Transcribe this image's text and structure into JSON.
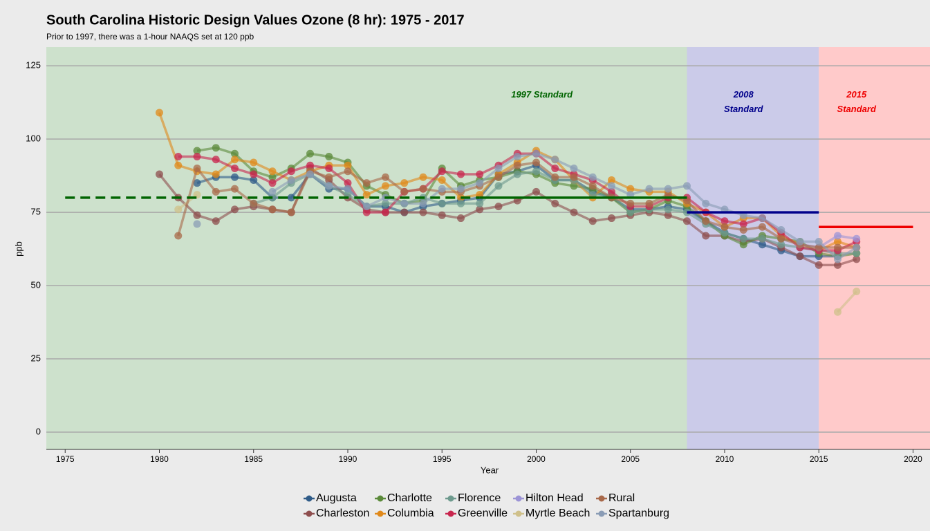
{
  "chart_data": {
    "type": "line",
    "title": "South Carolina Historic Design Values Ozone (8 hr): 1975 - 2017",
    "subtitle": "Prior to 1997, there was a 1-hour NAAQS set at 120 ppb",
    "xlabel": "Year",
    "ylabel": "ppb",
    "xlim": [
      1974,
      2020.9
    ],
    "ylim": [
      -5.9,
      131.4
    ],
    "xticks": [
      1975,
      1980,
      1985,
      1990,
      1995,
      2000,
      2005,
      2010,
      2015,
      2020
    ],
    "yticks": [
      0,
      25,
      50,
      75,
      100,
      125
    ],
    "grid": true,
    "legend": "bottom",
    "regions": [
      {
        "to": 2008,
        "color": "#cde1cc"
      },
      {
        "from": 2008,
        "to": 2015,
        "color": "#cbcbe9"
      },
      {
        "from": 2015,
        "color": "#ffcaca"
      }
    ],
    "standards": [
      {
        "value": 80,
        "from": 1975,
        "to": 1997,
        "color": "#006400",
        "dashed": true
      },
      {
        "value": 80,
        "from": 1997,
        "to": 2008,
        "color": "#006400"
      },
      {
        "value": 75,
        "from": 2008,
        "to": 2015,
        "color": "#00008b"
      },
      {
        "value": 70,
        "from": 2015,
        "to": 2020,
        "color": "#ee0000"
      }
    ],
    "annotations": [
      {
        "lines": [
          "1997 Standard"
        ],
        "x": 2000.3,
        "color": "#006400"
      },
      {
        "lines": [
          "2008",
          "Standard"
        ],
        "x": 2011,
        "color": "#00008b"
      },
      {
        "lines": [
          "2015",
          "Standard"
        ],
        "x": 2017,
        "color": "#ee0000"
      }
    ],
    "x": [
      1980,
      1981,
      1982,
      1983,
      1984,
      1985,
      1986,
      1987,
      1988,
      1989,
      1990,
      1991,
      1992,
      1993,
      1994,
      1995,
      1996,
      1997,
      1998,
      1999,
      2000,
      2001,
      2002,
      2003,
      2004,
      2005,
      2006,
      2007,
      2008,
      2009,
      2010,
      2011,
      2012,
      2013,
      2014,
      2015,
      2016,
      2017
    ],
    "series": [
      {
        "name": "Augusta",
        "color": "#2f5b88",
        "values": [
          null,
          null,
          85,
          87,
          87,
          86,
          80,
          80,
          88,
          83,
          83,
          77,
          77,
          75,
          77,
          78,
          79,
          80,
          88,
          89,
          91,
          86,
          86,
          82,
          80,
          76,
          76,
          77,
          76,
          72,
          68,
          66,
          64,
          62,
          60,
          60,
          60,
          null
        ]
      },
      {
        "name": "Charleston",
        "color": "#8e4e4e",
        "values": [
          88,
          80,
          74,
          72,
          76,
          77,
          76,
          75,
          90,
          86,
          80,
          76,
          75,
          75,
          75,
          74,
          73,
          76,
          77,
          79,
          82,
          78,
          75,
          72,
          73,
          74,
          75,
          74,
          72,
          67,
          67,
          65,
          66,
          63,
          60,
          57,
          57,
          59
        ]
      },
      {
        "name": "Charlotte",
        "color": "#5b8a3a",
        "values": [
          null,
          null,
          96,
          97,
          95,
          89,
          87,
          90,
          95,
          94,
          92,
          84,
          81,
          78,
          79,
          90,
          84,
          86,
          87,
          89,
          88,
          85,
          84,
          83,
          80,
          75,
          76,
          79,
          77,
          72,
          67,
          64,
          67,
          66,
          65,
          61,
          60,
          61
        ]
      },
      {
        "name": "Columbia",
        "color": "#e0891a",
        "values": [
          109,
          91,
          89,
          88,
          93,
          92,
          89,
          86,
          89,
          91,
          91,
          81,
          84,
          85,
          87,
          86,
          80,
          81,
          88,
          92,
          96,
          93,
          86,
          80,
          86,
          83,
          82,
          82,
          78,
          75,
          70,
          73,
          73,
          67,
          64,
          62,
          65,
          63
        ]
      },
      {
        "name": "Florence",
        "color": "#6e9a8e",
        "values": [
          null,
          null,
          null,
          null,
          null,
          78,
          80,
          85,
          88,
          84,
          81,
          77,
          78,
          78,
          80,
          78,
          78,
          78,
          84,
          88,
          89,
          86,
          86,
          81,
          81,
          75,
          76,
          76,
          75,
          71,
          68,
          66,
          66,
          64,
          63,
          62,
          61,
          61
        ]
      },
      {
        "name": "Greenville",
        "color": "#c8264e",
        "values": [
          null,
          94,
          94,
          93,
          90,
          88,
          85,
          89,
          91,
          90,
          85,
          75,
          75,
          82,
          83,
          89,
          88,
          88,
          91,
          95,
          95,
          90,
          88,
          86,
          82,
          77,
          77,
          80,
          80,
          75,
          72,
          71,
          73,
          68,
          63,
          62,
          62,
          65
        ]
      },
      {
        "name": "Hilton Head",
        "color": "#9c94d6",
        "values": [
          null,
          null,
          null,
          null,
          null,
          null,
          null,
          null,
          null,
          null,
          null,
          null,
          null,
          null,
          null,
          null,
          null,
          null,
          null,
          null,
          null,
          null,
          null,
          null,
          null,
          null,
          null,
          null,
          null,
          null,
          null,
          null,
          null,
          null,
          64,
          63,
          67,
          66
        ]
      },
      {
        "name": "Myrtle Beach",
        "color": "#cfc08a",
        "values": [
          null,
          76,
          81,
          null,
          null,
          null,
          null,
          null,
          null,
          null,
          null,
          null,
          null,
          null,
          null,
          null,
          null,
          null,
          null,
          null,
          null,
          null,
          null,
          null,
          null,
          null,
          null,
          null,
          null,
          null,
          null,
          null,
          null,
          null,
          null,
          null,
          41,
          48
        ]
      },
      {
        "name": "Rural",
        "color": "#a8694a",
        "values": [
          null,
          67,
          90,
          82,
          83,
          78,
          76,
          75,
          89,
          87,
          89,
          85,
          87,
          82,
          83,
          82,
          82,
          84,
          87,
          91,
          92,
          87,
          87,
          84,
          80,
          78,
          78,
          81,
          79,
          72,
          70,
          69,
          70,
          66,
          64,
          63,
          63,
          63
        ]
      },
      {
        "name": "Spartanburg",
        "color": "#8a9cb5",
        "values": [
          null,
          null,
          71,
          null,
          null,
          null,
          82,
          86,
          88,
          84,
          83,
          77,
          80,
          78,
          78,
          83,
          83,
          85,
          90,
          94,
          95,
          93,
          90,
          87,
          84,
          81,
          83,
          83,
          84,
          78,
          76,
          74,
          73,
          69,
          65,
          65,
          59,
          63
        ]
      }
    ]
  }
}
